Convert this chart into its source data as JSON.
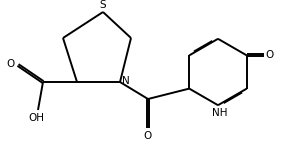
{
  "bg_color": "#ffffff",
  "line_color": "#000000",
  "line_width": 1.4,
  "font_size": 7.5,
  "figsize": [
    3.01,
    1.49
  ],
  "dpi": 100,
  "xlim": [
    0.0,
    3.01
  ],
  "ylim": [
    0.0,
    1.49
  ]
}
